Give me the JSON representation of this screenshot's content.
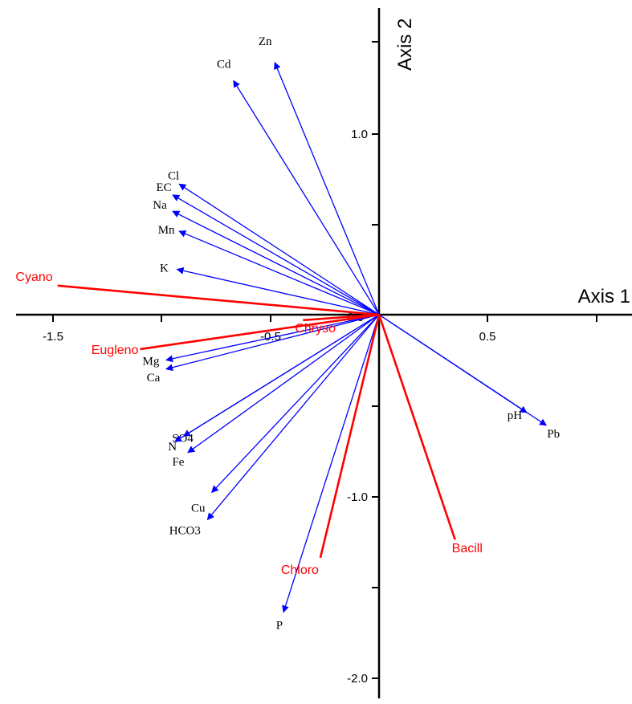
{
  "chart_data": {
    "type": "biplot",
    "xlabel": "Axis 1",
    "ylabel": "Axis 2",
    "x_ticks": [
      "-1.5",
      "-0.5",
      "0.5"
    ],
    "y_ticks": [
      "1.0",
      "-1.0",
      "-2.0"
    ],
    "origin_label": "0.0",
    "colors": {
      "environmental": "#0000ff",
      "species": "#ff0000",
      "axes": "#000000"
    },
    "environmental_vectors": [
      {
        "label": "Zn",
        "x": -0.48,
        "y": 1.39
      },
      {
        "label": "Cd",
        "x": -0.67,
        "y": 1.29
      },
      {
        "label": "Cl",
        "x": -0.92,
        "y": 0.72
      },
      {
        "label": "EC",
        "x": -0.95,
        "y": 0.66
      },
      {
        "label": "Na",
        "x": -0.95,
        "y": 0.57
      },
      {
        "label": "Mn",
        "x": -0.92,
        "y": 0.46
      },
      {
        "label": "K",
        "x": -0.93,
        "y": 0.25
      },
      {
        "label": "Mg",
        "x": -0.98,
        "y": -0.25
      },
      {
        "label": "Ca",
        "x": -0.98,
        "y": -0.3
      },
      {
        "label": "SO4",
        "x": -0.9,
        "y": -0.67
      },
      {
        "label": "N",
        "x": -0.94,
        "y": -0.7
      },
      {
        "label": "Fe",
        "x": -0.88,
        "y": -0.76
      },
      {
        "label": "Cu",
        "x": -0.77,
        "y": -0.98
      },
      {
        "label": "HCO3",
        "x": -0.79,
        "y": -1.13
      },
      {
        "label": "P",
        "x": -0.44,
        "y": -1.64
      },
      {
        "label": "pH",
        "x": 0.68,
        "y": -0.54
      },
      {
        "label": "Pb",
        "x": 0.77,
        "y": -0.61
      }
    ],
    "species_vectors": [
      {
        "label": "Cyano",
        "x": -1.48,
        "y": 0.16
      },
      {
        "label": "Eugleno",
        "x": -1.1,
        "y": -0.19
      },
      {
        "label": "Chryso",
        "x": -0.35,
        "y": -0.03
      },
      {
        "label": "Chloro",
        "x": -0.27,
        "y": -1.34
      },
      {
        "label": "Bacill",
        "x": 0.35,
        "y": -1.24
      }
    ]
  }
}
